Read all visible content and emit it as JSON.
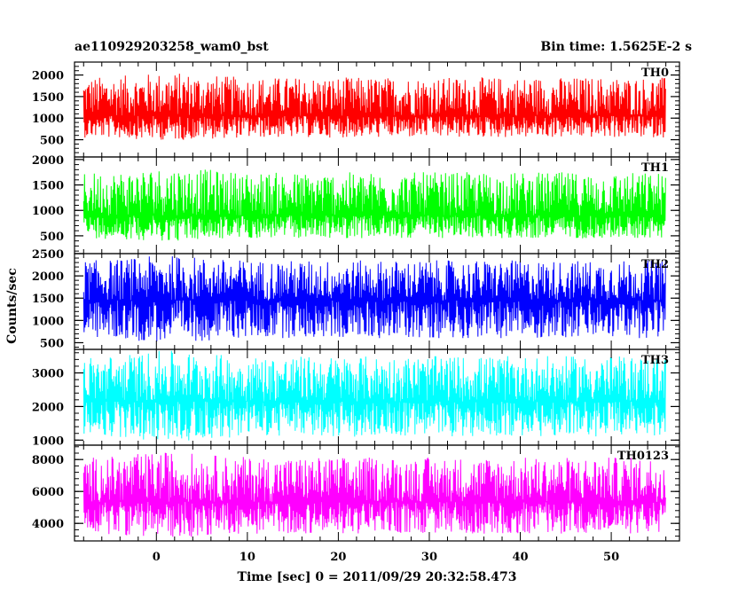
{
  "header": {
    "left": "ae110929203258_wam0_bst",
    "right": "Bin time: 1.5625E-2 s"
  },
  "chart_data": {
    "type": "line",
    "xlabel": "Time [sec] 0 = 2011/09/29 20:32:58.473",
    "ylabel": "Counts/sec",
    "xlim": [
      -9,
      57.5
    ],
    "x_range": [
      -8,
      56
    ],
    "xticks": [
      0,
      10,
      20,
      30,
      40,
      50
    ],
    "panels": [
      {
        "name": "TH0",
        "color": "#ff0000",
        "ylim": [
          100,
          2300
        ],
        "yticks": [
          500,
          1000,
          1500,
          2000
        ],
        "mean": 1050,
        "amp_low": 500,
        "amp_high": 900
      },
      {
        "name": "TH1",
        "color": "#00ff00",
        "ylim": [
          150,
          2050
        ],
        "yticks": [
          500,
          1000,
          1500,
          2000
        ],
        "mean": 900,
        "amp_low": 450,
        "amp_high": 850
      },
      {
        "name": "TH2",
        "color": "#0000ff",
        "ylim": [
          350,
          2500
        ],
        "yticks": [
          500,
          1000,
          1500,
          2000,
          2500
        ],
        "mean": 1450,
        "amp_low": 850,
        "amp_high": 900
      },
      {
        "name": "TH3",
        "color": "#00ffff",
        "ylim": [
          850,
          3700
        ],
        "yticks": [
          1000,
          2000,
          3000
        ],
        "mean": 2150,
        "amp_low": 1050,
        "amp_high": 1350
      },
      {
        "name": "TH0123",
        "color": "#ff00ff",
        "ylim": [
          2900,
          8900
        ],
        "yticks": [
          4000,
          6000,
          8000
        ],
        "mean": 5350,
        "amp_low": 2000,
        "amp_high": 2800
      }
    ]
  }
}
